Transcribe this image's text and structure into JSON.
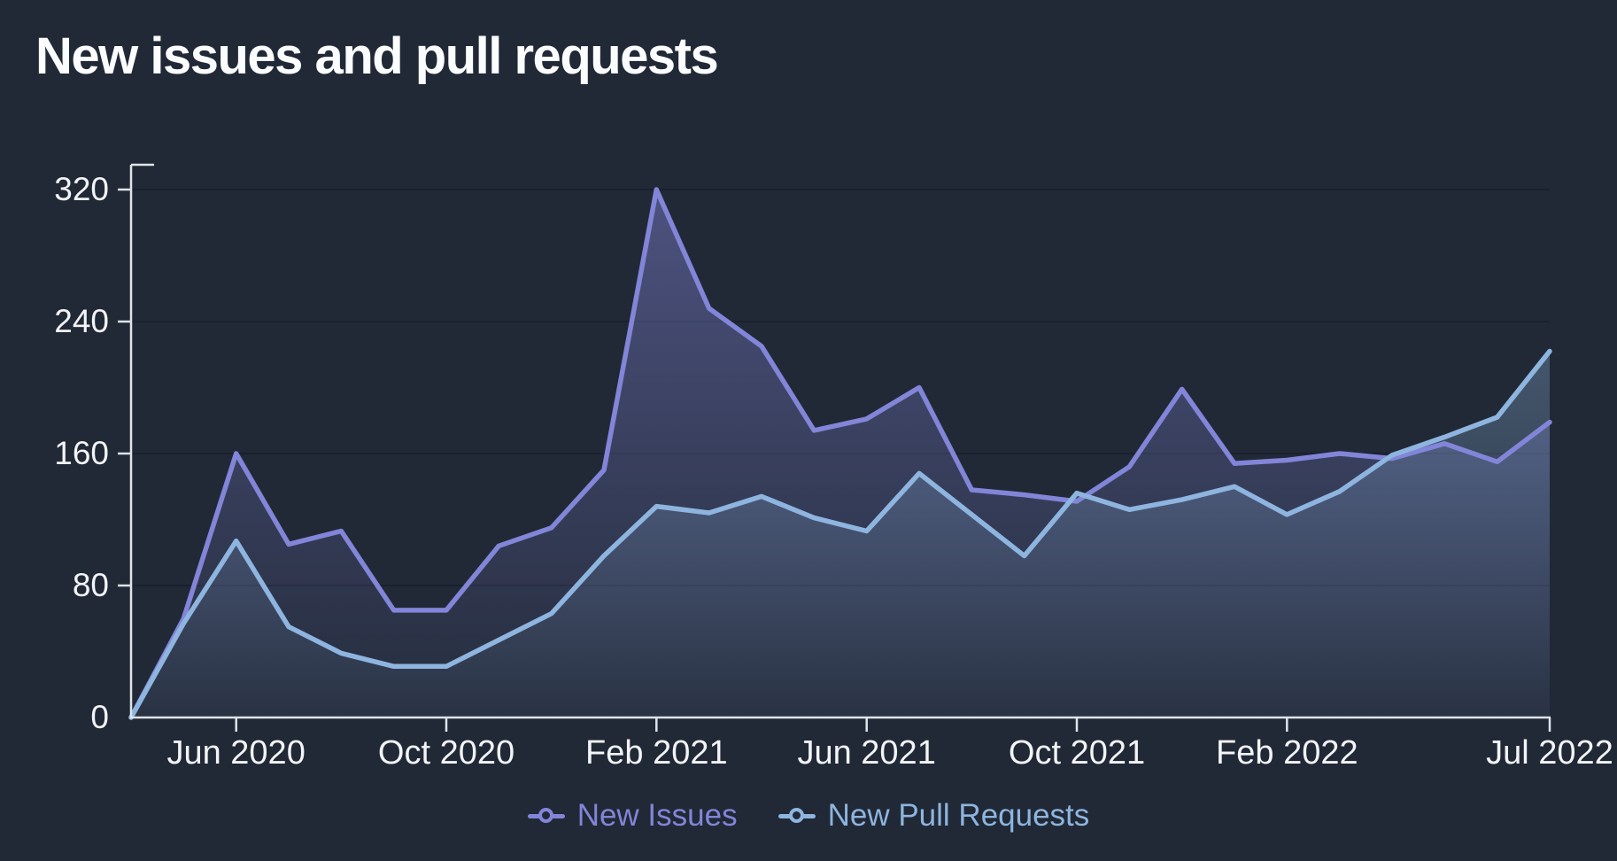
{
  "page": {
    "background": "#212936"
  },
  "header": {
    "title": "New issues and pull requests"
  },
  "chart_data": {
    "type": "area",
    "title": "New issues and pull requests",
    "x": [
      "Apr 2020",
      "May 2020",
      "Jun 2020",
      "Jul 2020",
      "Aug 2020",
      "Sep 2020",
      "Oct 2020",
      "Nov 2020",
      "Dec 2020",
      "Jan 2021",
      "Feb 2021",
      "Mar 2021",
      "Apr 2021",
      "May 2021",
      "Jun 2021",
      "Jul 2021",
      "Aug 2021",
      "Sep 2021",
      "Oct 2021",
      "Nov 2021",
      "Dec 2021",
      "Jan 2022",
      "Feb 2022",
      "Mar 2022",
      "Apr 2022",
      "May 2022",
      "Jun 2022",
      "Jul 2022"
    ],
    "x_tick_labels": [
      "Jun 2020",
      "Oct 2020",
      "Feb 2021",
      "Jun 2021",
      "Oct 2021",
      "Feb 2022",
      "Jul 2022"
    ],
    "x_tick_indices": [
      2,
      6,
      10,
      14,
      18,
      22,
      27
    ],
    "y_ticks": [
      0,
      80,
      160,
      240,
      320
    ],
    "ylim": [
      0,
      320
    ],
    "grid": true,
    "legend_position": "bottom",
    "series": [
      {
        "name": "New Issues",
        "color": "#8285d8",
        "values": [
          0,
          60,
          160,
          105,
          113,
          65,
          65,
          104,
          115,
          150,
          320,
          248,
          225,
          174,
          181,
          200,
          138,
          135,
          131,
          152,
          199,
          154,
          156,
          160,
          157,
          166,
          155,
          179
        ]
      },
      {
        "name": "New Pull Requests",
        "color": "#8eb5df",
        "values": [
          0,
          57,
          107,
          55,
          39,
          31,
          31,
          47,
          63,
          98,
          128,
          124,
          134,
          121,
          113,
          148,
          123,
          98,
          136,
          126,
          132,
          140,
          123,
          137,
          159,
          170,
          182,
          222
        ]
      }
    ],
    "colors": {
      "background": "#212936",
      "axis": "#dfe4ea",
      "tick_label": "#f2f4f7",
      "gridline": "#1a202e"
    }
  }
}
